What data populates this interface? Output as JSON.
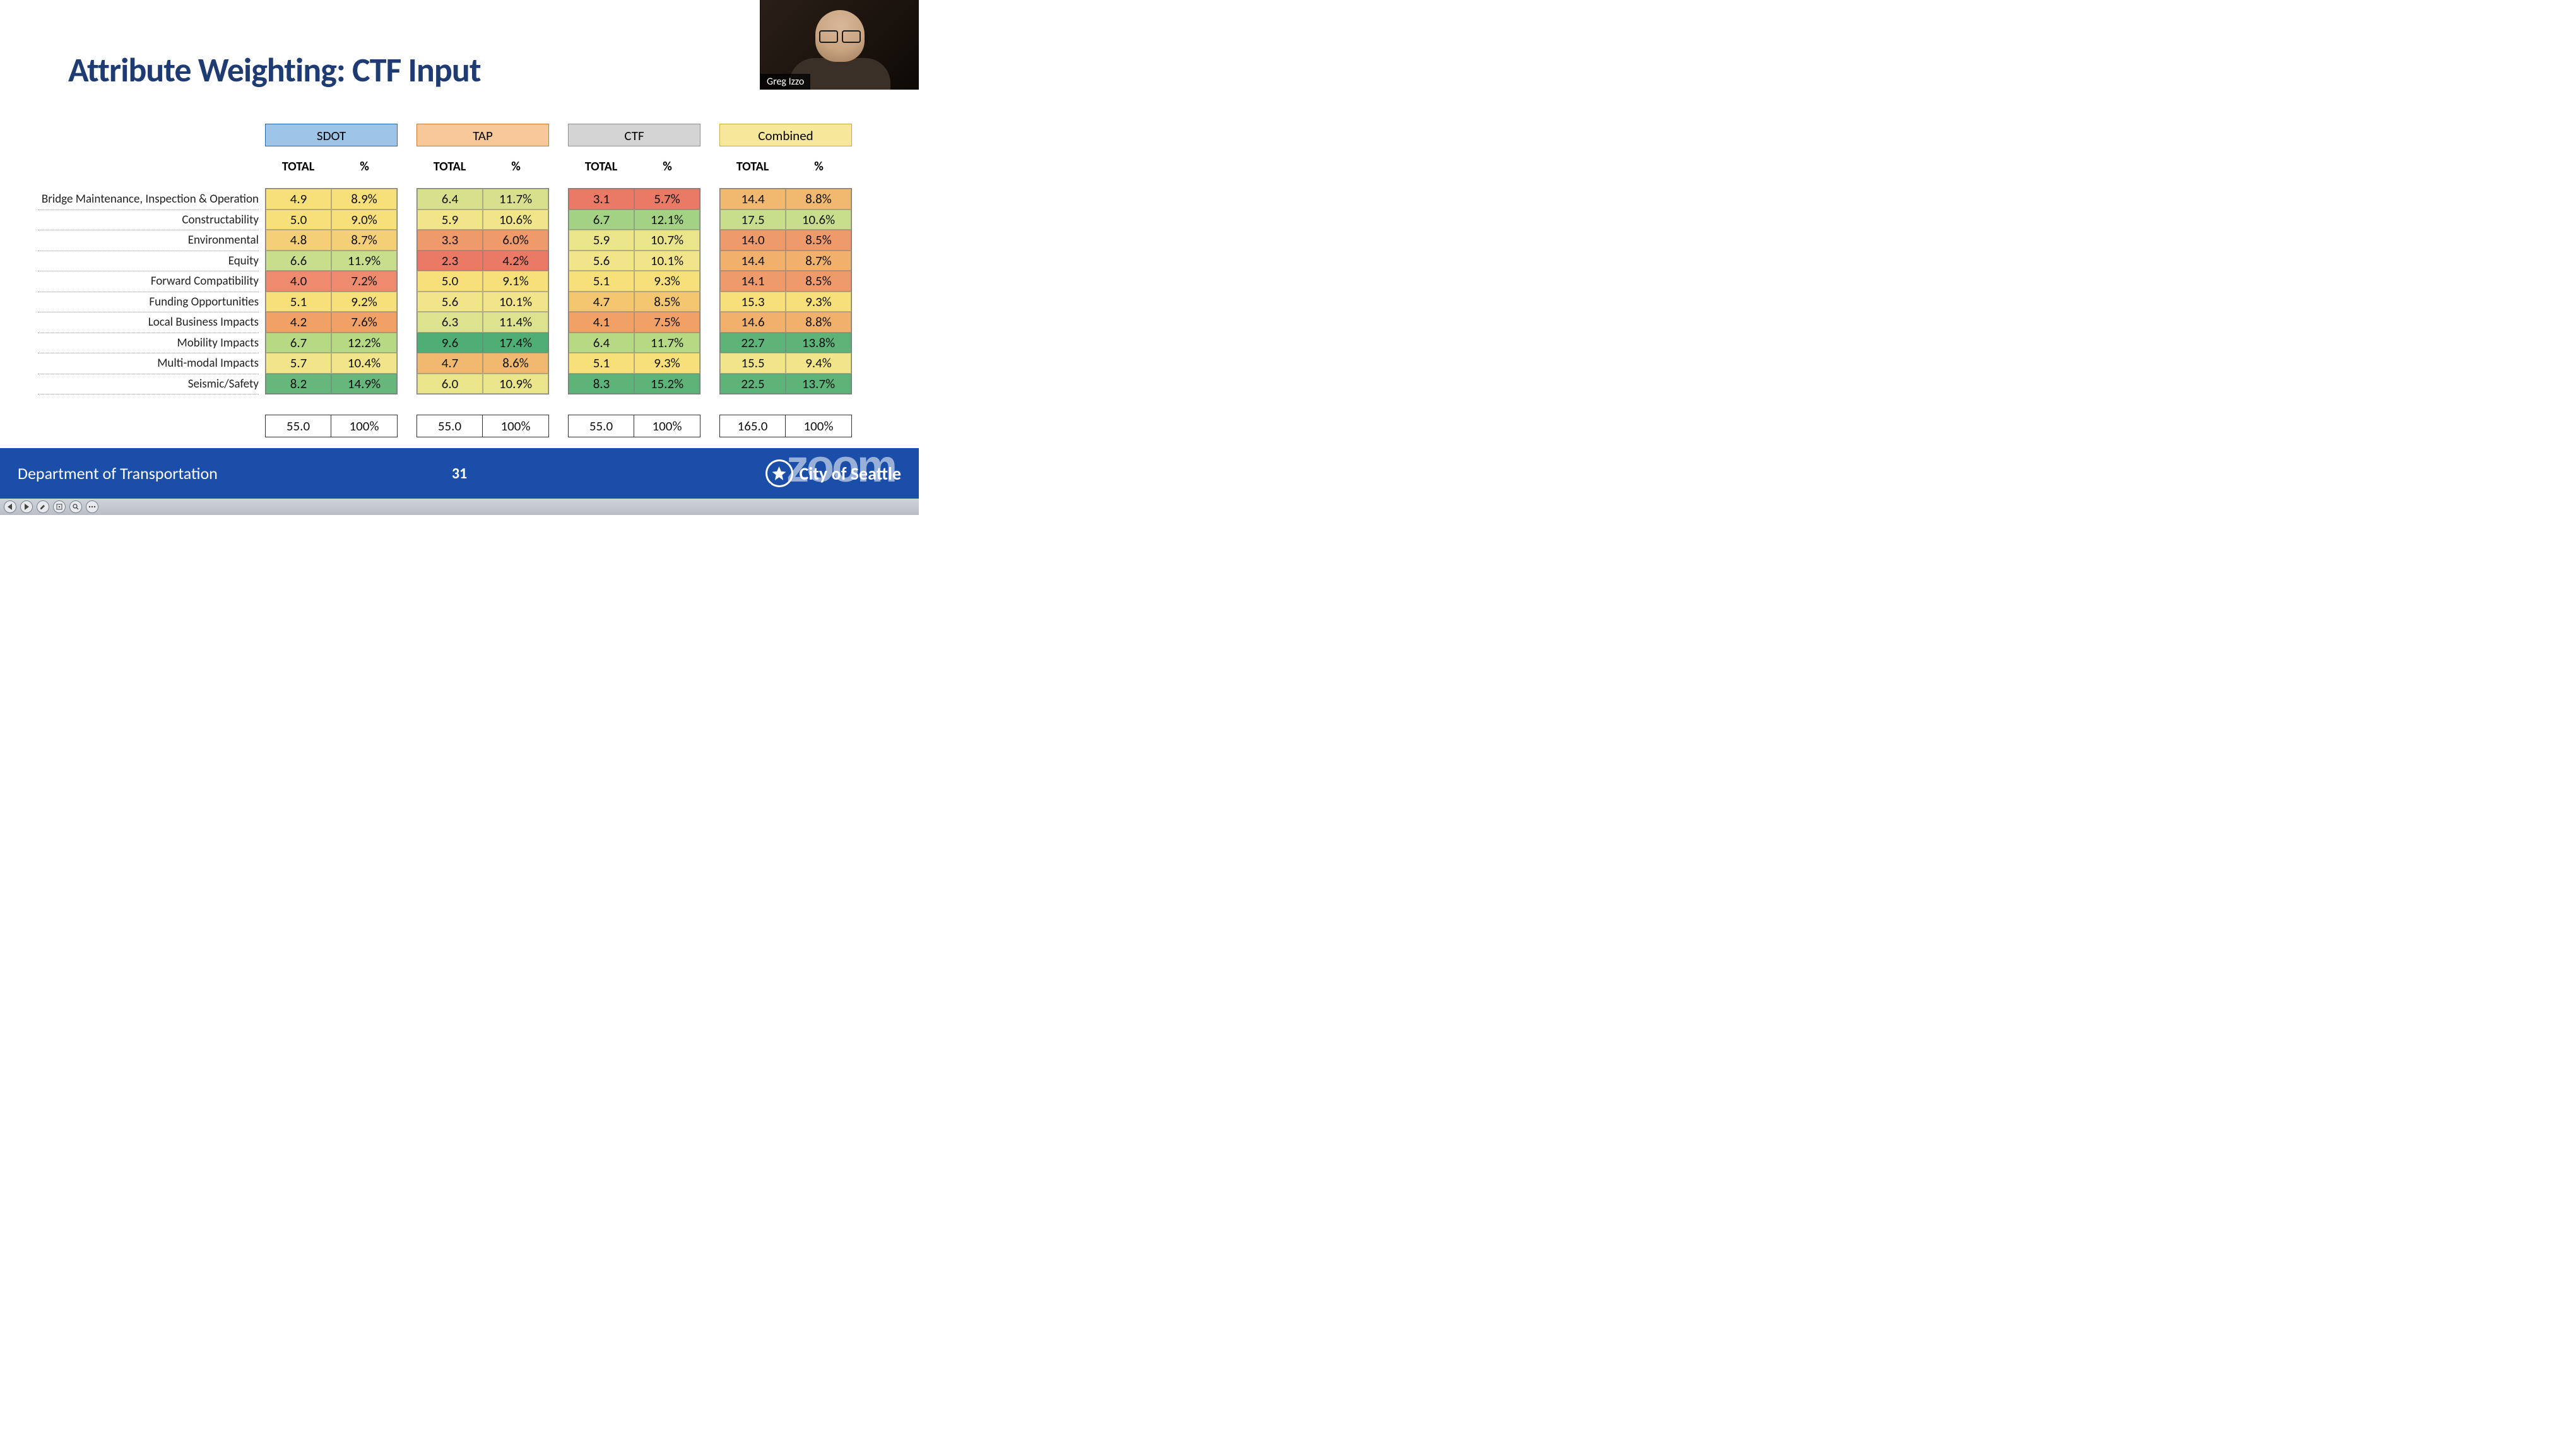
{
  "slide": {
    "title": "Attribute Weighting: CTF Input",
    "title_color": "#1f3b73",
    "title_fontsize": 54
  },
  "row_labels": [
    "Bridge Maintenance, Inspection & Operation",
    "Constructability",
    "Environmental",
    "Equity",
    "Forward Compatibility",
    "Funding Opportunities",
    "Local Business Impacts",
    "Mobility Impacts",
    "Multi-modal Impacts",
    "Seismic/Safety"
  ],
  "sub_headers": {
    "c1": "TOTAL",
    "c2": "%"
  },
  "groups": [
    {
      "name": "SDOT",
      "header_bg": "#9ec5e8",
      "header_border": "#2e6aa8",
      "rows": [
        [
          "4.9",
          "8.9%"
        ],
        [
          "5.0",
          "9.0%"
        ],
        [
          "4.8",
          "8.7%"
        ],
        [
          "6.6",
          "11.9%"
        ],
        [
          "4.0",
          "7.2%"
        ],
        [
          "5.1",
          "9.2%"
        ],
        [
          "4.2",
          "7.6%"
        ],
        [
          "6.7",
          "12.2%"
        ],
        [
          "5.7",
          "10.4%"
        ],
        [
          "8.2",
          "14.9%"
        ]
      ],
      "totals": [
        "55.0",
        "100%"
      ]
    },
    {
      "name": "TAP",
      "header_bg": "#f6c89a",
      "header_border": "#cc7a2e",
      "rows": [
        [
          "6.4",
          "11.7%"
        ],
        [
          "5.9",
          "10.6%"
        ],
        [
          "3.3",
          "6.0%"
        ],
        [
          "2.3",
          "4.2%"
        ],
        [
          "5.0",
          "9.1%"
        ],
        [
          "5.6",
          "10.1%"
        ],
        [
          "6.3",
          "11.4%"
        ],
        [
          "9.6",
          "17.4%"
        ],
        [
          "4.7",
          "8.6%"
        ],
        [
          "6.0",
          "10.9%"
        ]
      ],
      "totals": [
        "55.0",
        "100%"
      ]
    },
    {
      "name": "CTF",
      "header_bg": "#d4d4d4",
      "header_border": "#8f8f8f",
      "rows": [
        [
          "3.1",
          "5.7%"
        ],
        [
          "6.7",
          "12.1%"
        ],
        [
          "5.9",
          "10.7%"
        ],
        [
          "5.6",
          "10.1%"
        ],
        [
          "5.1",
          "9.3%"
        ],
        [
          "4.7",
          "8.5%"
        ],
        [
          "4.1",
          "7.5%"
        ],
        [
          "6.4",
          "11.7%"
        ],
        [
          "5.1",
          "9.3%"
        ],
        [
          "8.3",
          "15.2%"
        ]
      ],
      "totals": [
        "55.0",
        "100%"
      ]
    },
    {
      "name": "Combined",
      "header_bg": "#f6e79a",
      "header_border": "#c9ad3a",
      "rows": [
        [
          "14.4",
          "8.8%"
        ],
        [
          "17.5",
          "10.6%"
        ],
        [
          "14.0",
          "8.5%"
        ],
        [
          "14.4",
          "8.7%"
        ],
        [
          "14.1",
          "8.5%"
        ],
        [
          "15.3",
          "9.3%"
        ],
        [
          "14.6",
          "8.8%"
        ],
        [
          "22.7",
          "13.8%"
        ],
        [
          "15.5",
          "9.4%"
        ],
        [
          "22.5",
          "13.7%"
        ]
      ],
      "totals": [
        "165.0",
        "100%"
      ]
    }
  ],
  "heat_colors": {
    "groups": [
      [
        [
          "#f7e07a",
          "#f7e07a"
        ],
        [
          "#f7e07a",
          "#f7e07a"
        ],
        [
          "#f4cf77",
          "#f4cf77"
        ],
        [
          "#c9de8d",
          "#c9de8d"
        ],
        [
          "#ee8b6f",
          "#ee8b6f"
        ],
        [
          "#f7e07a",
          "#f7e07a"
        ],
        [
          "#f1a066",
          "#f1a066"
        ],
        [
          "#b7d984",
          "#b7d984"
        ],
        [
          "#f2e589",
          "#f2e589"
        ],
        [
          "#67b77d",
          "#67b77d"
        ]
      ],
      [
        [
          "#d7e08c",
          "#d7e08c"
        ],
        [
          "#f2e589",
          "#f2e589"
        ],
        [
          "#ef9a6a",
          "#ef9a6a"
        ],
        [
          "#ea7a65",
          "#ea7a65"
        ],
        [
          "#f7e07a",
          "#f7e07a"
        ],
        [
          "#f2e589",
          "#f2e589"
        ],
        [
          "#dce28d",
          "#dce28d"
        ],
        [
          "#4fae74",
          "#4fae74"
        ],
        [
          "#f1b970",
          "#f1b970"
        ],
        [
          "#eae58b",
          "#eae58b"
        ]
      ],
      [
        [
          "#ea7a65",
          "#ea7a65"
        ],
        [
          "#a3d284",
          "#a3d284"
        ],
        [
          "#eae58b",
          "#eae58b"
        ],
        [
          "#f2e589",
          "#f2e589"
        ],
        [
          "#f7e07a",
          "#f7e07a"
        ],
        [
          "#f3c66f",
          "#f3c66f"
        ],
        [
          "#f1a066",
          "#f1a066"
        ],
        [
          "#b7d984",
          "#b7d984"
        ],
        [
          "#f7e07a",
          "#f7e07a"
        ],
        [
          "#5eb478",
          "#5eb478"
        ]
      ],
      [
        [
          "#f1b970",
          "#f1b970"
        ],
        [
          "#c9de8d",
          "#c9de8d"
        ],
        [
          "#ef9a6a",
          "#ef9a6a"
        ],
        [
          "#f1b06c",
          "#f1b06c"
        ],
        [
          "#ef9a6a",
          "#ef9a6a"
        ],
        [
          "#f7e07a",
          "#f7e07a"
        ],
        [
          "#f1b06c",
          "#f1b06c"
        ],
        [
          "#5eb478",
          "#5eb478"
        ],
        [
          "#f2e589",
          "#f2e589"
        ],
        [
          "#5eb478",
          "#5eb478"
        ]
      ]
    ]
  },
  "footer": {
    "left": "Department of Transportation",
    "page": "31",
    "right": "City of Seattle",
    "bg": "#1b4ea8"
  },
  "watermark": "zoom",
  "webcam": {
    "name": "Greg Izzo"
  },
  "toolbar_icons": [
    "prev",
    "play",
    "edit",
    "pointer",
    "zoom",
    "more"
  ]
}
